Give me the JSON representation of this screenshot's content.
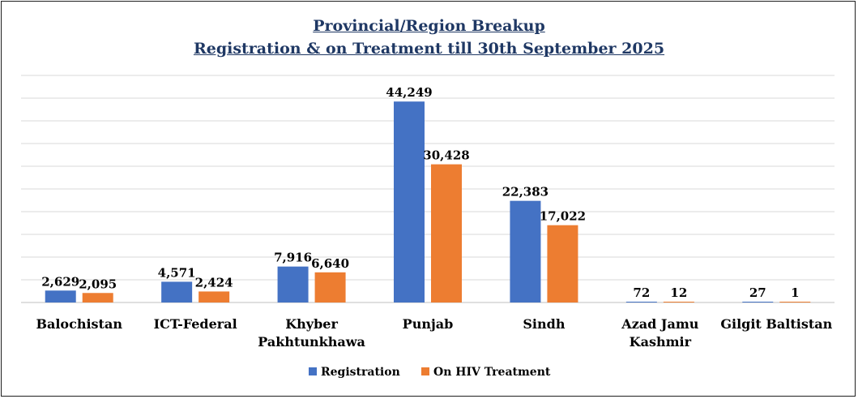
{
  "chart_data": {
    "type": "bar",
    "title_line1": "Provincial/Region Breakup",
    "title_line2": "Registration & on Treatment till 30th September 2025",
    "categories": [
      [
        "Balochistan"
      ],
      [
        "ICT-Federal"
      ],
      [
        "Khyber",
        "Pakhtunkhawa"
      ],
      [
        "Punjab"
      ],
      [
        "Sindh"
      ],
      [
        "Azad Jamu",
        "Kashmir"
      ],
      [
        "Gilgit Baltistan"
      ]
    ],
    "series": [
      {
        "name": "Registration",
        "color": "#4472c4",
        "values": [
          2629,
          4571,
          7916,
          44249,
          22383,
          72,
          27
        ],
        "labels": [
          "2,629",
          "4,571",
          "7,916",
          "44,249",
          "22,383",
          "72",
          "27"
        ]
      },
      {
        "name": "On HIV Treatment",
        "color": "#ed7d31",
        "values": [
          2095,
          2424,
          6640,
          30428,
          17022,
          12,
          1
        ],
        "labels": [
          "2,095",
          "2,424",
          "6,640",
          "30,428",
          "17,022",
          "12",
          "1"
        ]
      }
    ],
    "ylim": [
      0,
      50000
    ],
    "grid": true,
    "legend": "bottom"
  }
}
